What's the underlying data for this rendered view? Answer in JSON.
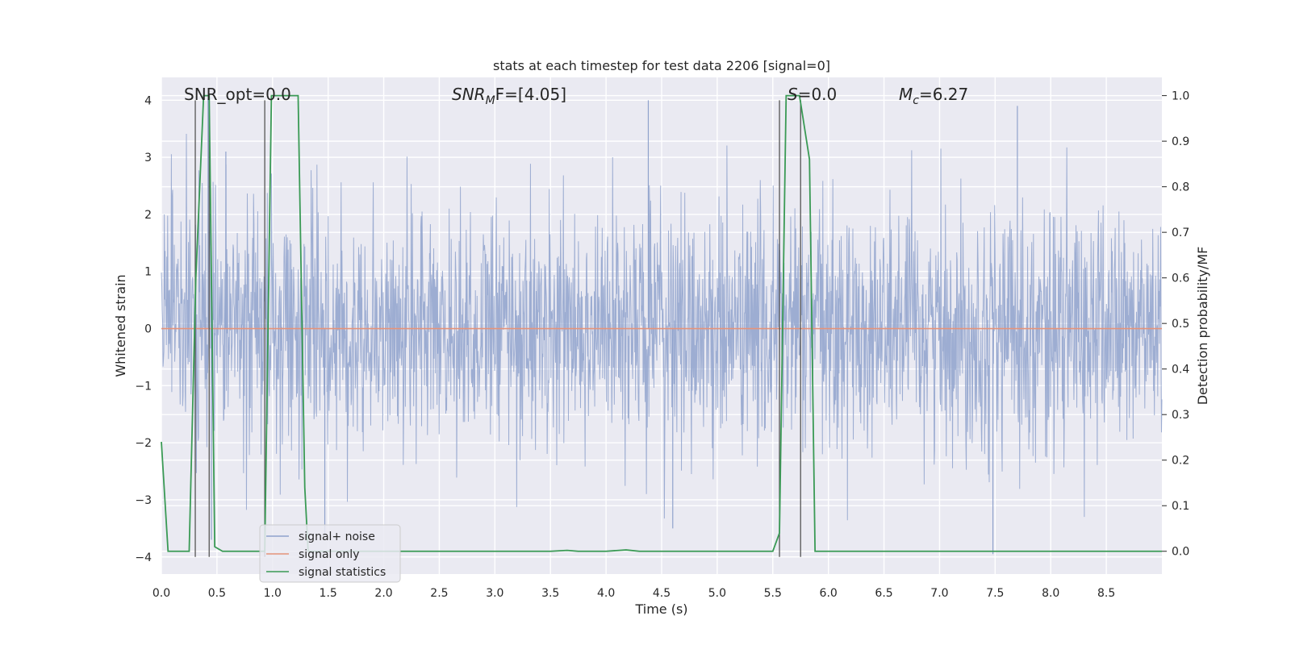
{
  "chart_data": {
    "type": "line",
    "title": "stats at each timestep for test data 2206 [signal=0]",
    "xlabel": "Time (s)",
    "ylabel": "Whitened strain",
    "ylabel_right": "Detection probability/MF",
    "xlim": [
      0.0,
      9.0
    ],
    "ylim": [
      -4.3,
      4.4
    ],
    "ylim_right": [
      -0.05,
      1.04
    ],
    "x_ticks": [
      "0.0",
      "0.5",
      "1.0",
      "1.5",
      "2.0",
      "2.5",
      "3.0",
      "3.5",
      "4.0",
      "4.5",
      "5.0",
      "5.5",
      "6.0",
      "6.5",
      "7.0",
      "7.5",
      "8.0",
      "8.5"
    ],
    "y_ticks": [
      "4",
      "3",
      "2",
      "1",
      "0",
      "−1",
      "−2",
      "−3",
      "−4"
    ],
    "y_ticks_right": [
      "1.0",
      "0.9",
      "0.8",
      "0.7",
      "0.6",
      "0.5",
      "0.4",
      "0.3",
      "0.2",
      "0.1",
      "0.0"
    ],
    "annotations": {
      "snr_opt": "SNR_opt=0.0",
      "snr_mf_name": "SNR",
      "snr_mf_sub": "M",
      "snr_mf_rest": "F=[4.05]",
      "s_name": "S",
      "s_rest": "=0.0",
      "mc_name": "M",
      "mc_sub": "c",
      "mc_rest": "=6.27"
    },
    "series": [
      {
        "name": "signal+ noise",
        "color": "#8fa2cc",
        "note": "whitened noise, roughly within ±2.5 with spikes to about 4 and -4"
      },
      {
        "name": "signal only",
        "color": "#e5937a",
        "values_constant": 0.0
      },
      {
        "name": "signal statistics",
        "color": "#3a9a55",
        "axis": "right",
        "x": [
          0.0,
          0.06,
          0.25,
          0.31,
          0.38,
          0.43,
          0.48,
          0.55,
          0.93,
          0.99,
          1.23,
          1.29,
          1.32,
          2.0,
          3.5,
          3.65,
          3.75,
          4.0,
          4.18,
          4.3,
          5.0,
          5.5,
          5.56,
          5.62,
          5.74,
          5.83,
          5.88,
          9.0
        ],
        "values": [
          0.24,
          0.0,
          0.0,
          0.6,
          1.0,
          1.0,
          0.01,
          0.0,
          0.0,
          1.0,
          1.0,
          0.14,
          0.0,
          0.0,
          0.0,
          0.002,
          0.0,
          0.0,
          0.003,
          0.0,
          0.0,
          0.0,
          0.04,
          1.0,
          1.0,
          0.86,
          0.0,
          0.0
        ]
      }
    ],
    "vertical_lines_x": [
      0.305,
      0.43,
      0.93,
      5.56,
      5.75
    ],
    "legend": {
      "position": "lower-left",
      "entries": [
        "signal+ noise",
        "signal only",
        "signal statistics"
      ]
    },
    "grid": true
  }
}
